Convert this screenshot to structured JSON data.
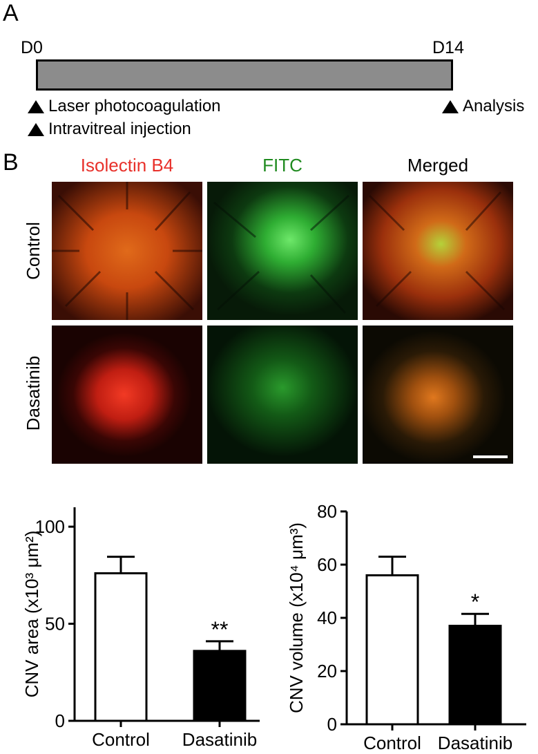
{
  "panel_a": {
    "letter": "A",
    "start_label": "D0",
    "end_label": "D14",
    "start_events": [
      "Laser photocoagulation",
      "Intravitreal injection"
    ],
    "end_events": [
      "Analysis"
    ]
  },
  "panel_b": {
    "letter": "B",
    "columns": [
      {
        "label": "Isolectin B4",
        "color": "#e8302a"
      },
      {
        "label": "FITC",
        "color": "#1f8a1f"
      },
      {
        "label": "Merged",
        "color": "#000000"
      }
    ],
    "rows": [
      "Control",
      "Dasatinib"
    ]
  },
  "chart_data": [
    {
      "type": "bar",
      "categories": [
        "Control",
        "Dasatinib"
      ],
      "values": [
        76,
        36
      ],
      "errors": [
        8.5,
        5
      ],
      "fill": [
        "#ffffff",
        "#000000"
      ],
      "significance": [
        "",
        "**"
      ],
      "ylabel": "CNV area (x10³ μm²)",
      "ylim": [
        0,
        110
      ],
      "yticks": [
        0,
        50,
        100
      ]
    },
    {
      "type": "bar",
      "categories": [
        "Control",
        "Dasatinib"
      ],
      "values": [
        56,
        37
      ],
      "errors": [
        7,
        4.5
      ],
      "fill": [
        "#ffffff",
        "#000000"
      ],
      "significance": [
        "",
        "*"
      ],
      "ylabel": "CNV volume (x10⁴ μm³)",
      "ylim": [
        0,
        80
      ],
      "yticks": [
        0,
        20,
        40,
        60,
        80
      ]
    }
  ]
}
